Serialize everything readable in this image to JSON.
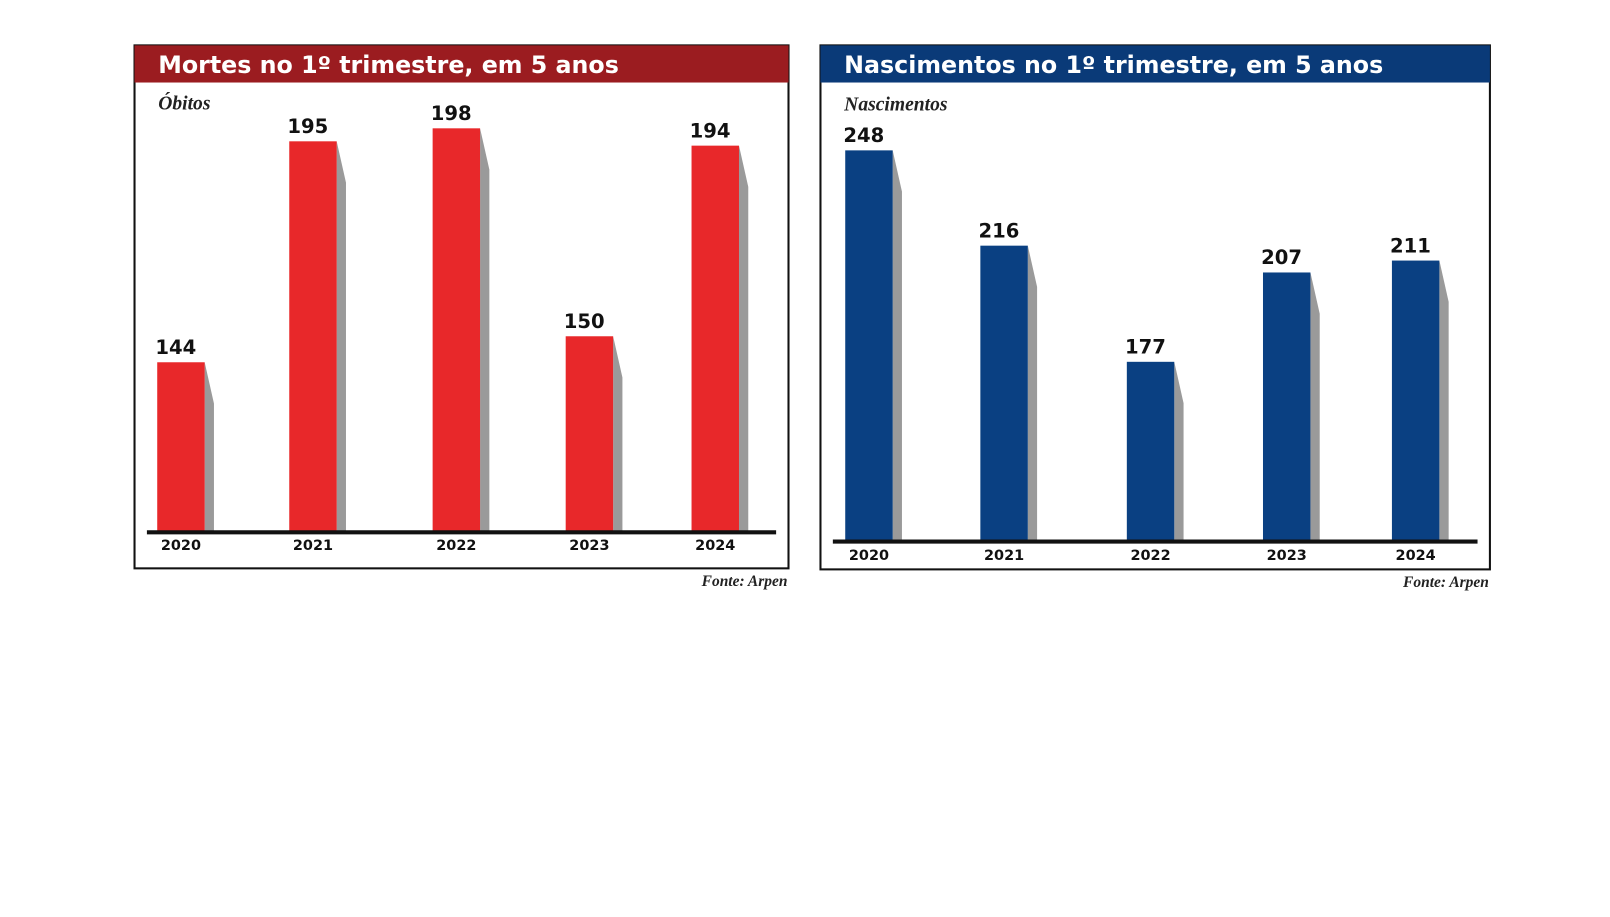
{
  "chart_data": [
    {
      "type": "bar",
      "title": "Mortes no 1º trimestre, em 5 anos",
      "ylabel": "Óbitos",
      "source": "Fonte: Arpen",
      "categories": [
        "2020",
        "2021",
        "2022",
        "2023",
        "2024"
      ],
      "values": [
        144,
        195,
        198,
        150,
        194
      ],
      "color": "#e8282a",
      "header_color": "#9b1c20",
      "ylim": [
        105,
        200
      ]
    },
    {
      "type": "bar",
      "title": "Nascimentos no 1º trimestre, em 5 anos",
      "ylabel": "Nascimentos",
      "source": "Fonte: Arpen",
      "categories": [
        "2020",
        "2021",
        "2022",
        "2023",
        "2024"
      ],
      "values": [
        248,
        216,
        177,
        207,
        211
      ],
      "color": "#0a4082",
      "header_color": "#0a3a78",
      "ylim": [
        117,
        250
      ]
    }
  ]
}
